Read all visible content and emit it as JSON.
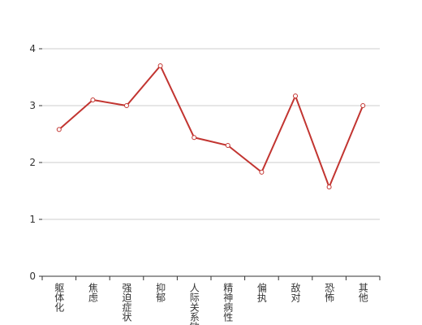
{
  "chart_data": {
    "type": "line",
    "categories": [
      "躯体化",
      "焦虑",
      "强迫症状",
      "抑郁",
      "人际关系敏感",
      "精神病性",
      "偏执",
      "敌对",
      "恐怖",
      "其他"
    ],
    "values": [
      2.58,
      3.1,
      3.0,
      3.7,
      2.44,
      2.3,
      1.83,
      3.17,
      1.57,
      3.0
    ],
    "color": "#c23531",
    "ylim": [
      0,
      4
    ],
    "yticks": [
      0,
      1,
      2,
      3,
      4
    ],
    "grid": true
  }
}
